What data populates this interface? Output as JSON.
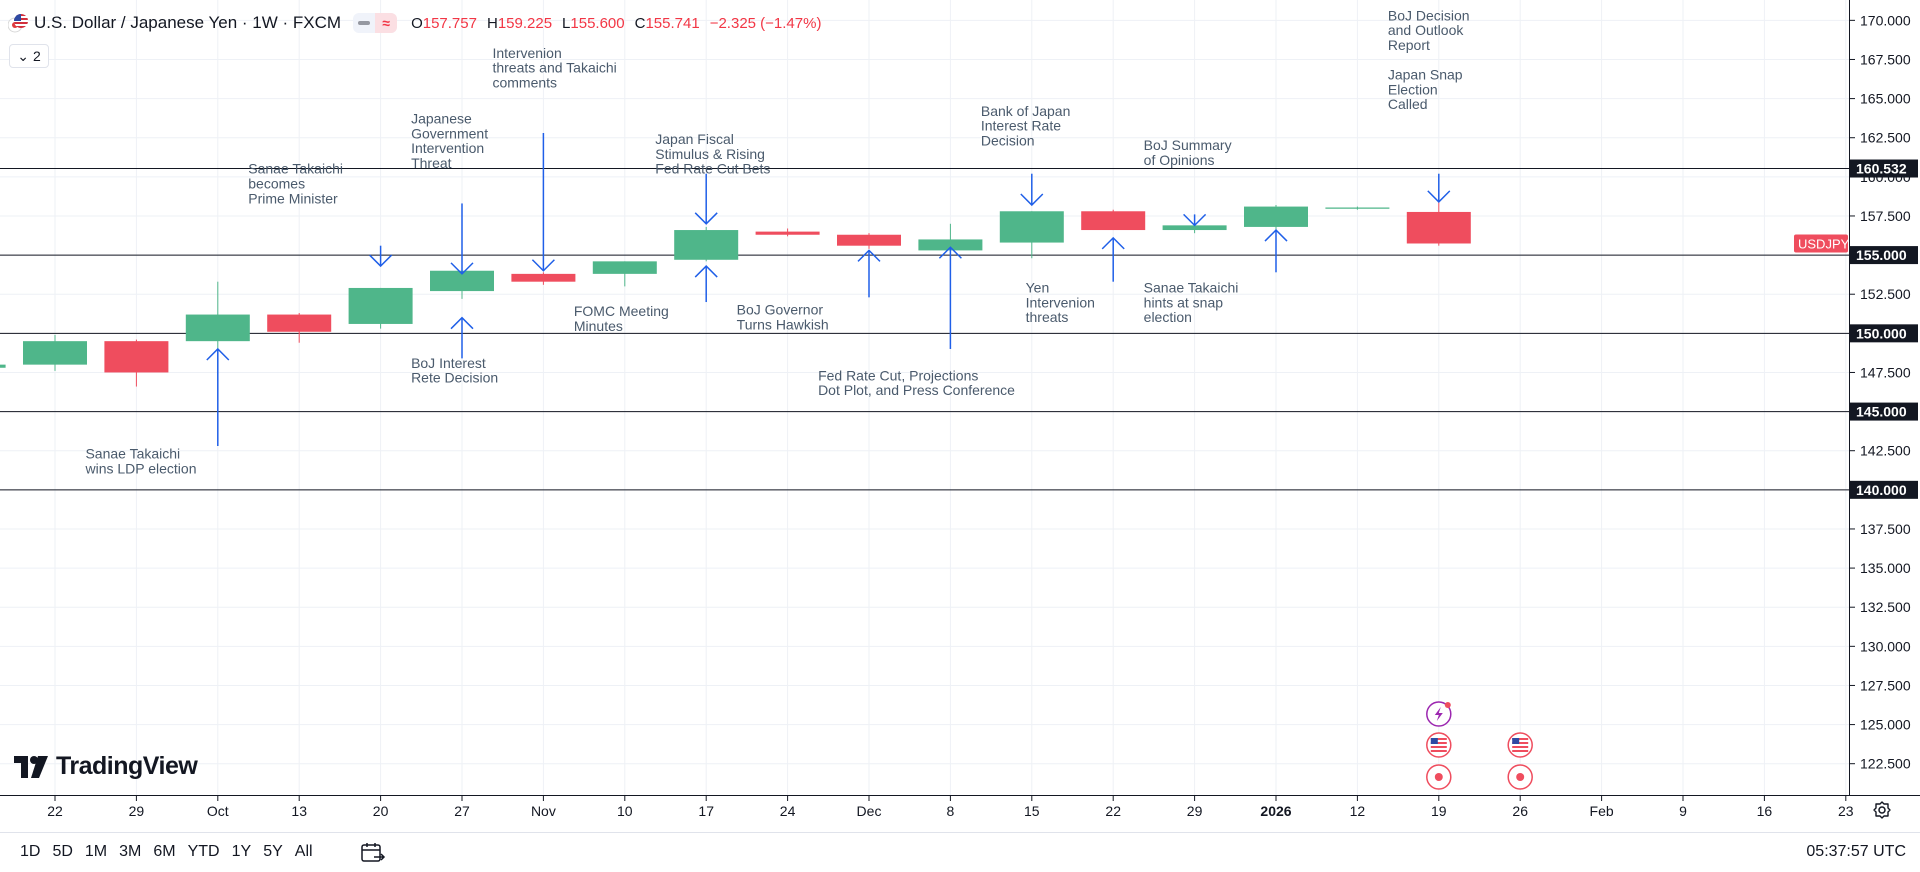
{
  "legend": {
    "title": "U.S. Dollar / Japanese Yen · 1W · FXCM",
    "open_label": "O",
    "open": "157.757",
    "high_label": "H",
    "high": "159.225",
    "low_label": "L",
    "low": "155.600",
    "close_label": "C",
    "close": "155.741",
    "change": "−2.325 (−1.47%)",
    "indicators_count": "2"
  },
  "brand": {
    "name": "TradingView"
  },
  "bottom": {
    "ranges": [
      "1D",
      "5D",
      "1M",
      "3M",
      "6M",
      "YTD",
      "1Y",
      "5Y",
      "All"
    ],
    "clock": "05:37:57 UTC"
  },
  "colors": {
    "up": "#4fb68a",
    "down": "#ef4d5e",
    "annotation": "#1f5fe8",
    "text_annot": "#4a5a6c",
    "grid": "#eef1f6"
  },
  "chart_data": {
    "type": "candlestick",
    "symbol": "USDJPY",
    "ylim": [
      120.5,
      171.3
    ],
    "y_ticks": [
      "170.000",
      "167.500",
      "165.000",
      "162.500",
      "160.000",
      "157.500",
      "155.000",
      "152.500",
      "150.000",
      "147.500",
      "145.000",
      "142.500",
      "140.000",
      "137.500",
      "135.000",
      "132.500",
      "130.000",
      "127.500",
      "125.000",
      "122.500"
    ],
    "x_ticks": [
      {
        "i": 0,
        "label": "22"
      },
      {
        "i": 1,
        "label": "29"
      },
      {
        "i": 2,
        "label": "Oct"
      },
      {
        "i": 3,
        "label": "13"
      },
      {
        "i": 4,
        "label": "20"
      },
      {
        "i": 5,
        "label": "27"
      },
      {
        "i": 6,
        "label": "Nov"
      },
      {
        "i": 7,
        "label": "10"
      },
      {
        "i": 8,
        "label": "17"
      },
      {
        "i": 9,
        "label": "24"
      },
      {
        "i": 10,
        "label": "Dec"
      },
      {
        "i": 11,
        "label": "8"
      },
      {
        "i": 12,
        "label": "15"
      },
      {
        "i": 13,
        "label": "22"
      },
      {
        "i": 14,
        "label": "29"
      },
      {
        "i": 15,
        "label": "2026",
        "bold": true
      },
      {
        "i": 16,
        "label": "12"
      },
      {
        "i": 17,
        "label": "19"
      },
      {
        "i": 18,
        "label": "26"
      },
      {
        "i": 19,
        "label": "Feb"
      },
      {
        "i": 20,
        "label": "9"
      },
      {
        "i": 21,
        "label": "16"
      },
      {
        "i": 22,
        "label": "23"
      }
    ],
    "candles": [
      {
        "i": -1,
        "o": 147.8,
        "h": 148.2,
        "l": 147.5,
        "c": 148.0
      },
      {
        "i": 0,
        "o": 148.0,
        "h": 149.9,
        "l": 147.6,
        "c": 149.5
      },
      {
        "i": 1,
        "o": 149.5,
        "h": 149.6,
        "l": 146.6,
        "c": 147.5
      },
      {
        "i": 2,
        "o": 149.5,
        "h": 153.3,
        "l": 147.0,
        "c": 151.2
      },
      {
        "i": 3,
        "o": 151.2,
        "h": 151.3,
        "l": 149.4,
        "c": 150.1
      },
      {
        "i": 4,
        "o": 150.6,
        "h": 152.9,
        "l": 150.3,
        "c": 152.9
      },
      {
        "i": 5,
        "o": 152.7,
        "h": 154.2,
        "l": 152.2,
        "c": 154.0
      },
      {
        "i": 6,
        "o": 153.8,
        "h": 153.9,
        "l": 153.1,
        "c": 153.3
      },
      {
        "i": 7,
        "o": 153.8,
        "h": 154.6,
        "l": 153.0,
        "c": 154.6
      },
      {
        "i": 8,
        "o": 154.7,
        "h": 156.8,
        "l": 154.6,
        "c": 156.6
      },
      {
        "i": 9,
        "o": 156.5,
        "h": 156.7,
        "l": 156.2,
        "c": 156.3
      },
      {
        "i": 10,
        "o": 156.3,
        "h": 156.4,
        "l": 155.4,
        "c": 155.6
      },
      {
        "i": 11,
        "o": 155.3,
        "h": 157.0,
        "l": 154.9,
        "c": 156.0
      },
      {
        "i": 12,
        "o": 155.8,
        "h": 157.8,
        "l": 154.8,
        "c": 157.8
      },
      {
        "i": 13,
        "o": 157.8,
        "h": 157.9,
        "l": 156.6,
        "c": 156.6
      },
      {
        "i": 14,
        "o": 156.6,
        "h": 157.0,
        "l": 156.4,
        "c": 156.9
      },
      {
        "i": 15,
        "o": 156.8,
        "h": 158.2,
        "l": 156.6,
        "c": 158.1
      },
      {
        "i": 16,
        "o": 158.0,
        "h": 158.1,
        "l": 157.9,
        "c": 158.0
      },
      {
        "i": 17,
        "o": 157.757,
        "h": 159.225,
        "l": 155.6,
        "c": 155.741
      }
    ],
    "horizontal_lines": [
      160.532,
      155.0,
      150.0,
      145.0,
      140.0
    ],
    "price_labels": [
      {
        "v": 160.532,
        "text": "160.532"
      },
      {
        "v": 155.0,
        "text": "155.000"
      },
      {
        "v": 150.0,
        "text": "150.000"
      },
      {
        "v": 145.0,
        "text": "145.000"
      },
      {
        "v": 140.0,
        "text": "140.000"
      }
    ],
    "current_price_label": {
      "v": 155.741,
      "text": "USDJPY"
    },
    "annotations": [
      {
        "text": [
          "Sanae Takaichi",
          "wins LDP election"
        ],
        "arrow_i": 2,
        "tip": 149.0,
        "tail": 142.8,
        "text_i": 1.05,
        "text_v": 142.0
      },
      {
        "text": [
          "Sanae Takaichi",
          "becomes",
          "Prime Minister"
        ],
        "arrow_i": 4,
        "tip": 154.3,
        "tail": 155.6,
        "text_i": 3.05,
        "text_v": 160.2
      },
      {
        "text": [
          "Japanese",
          "Government",
          "Intervention",
          "Threat"
        ],
        "arrow_i": 5,
        "tip": 153.8,
        "tail": 158.3,
        "text_i": 5.05,
        "text_v": 163.4
      },
      {
        "text": [
          "BoJ Interest",
          "Rete Decision"
        ],
        "arrow_i": 5,
        "tip": 151.0,
        "tail": 148.4,
        "text_i": 5.05,
        "text_v": 147.8
      },
      {
        "text": [
          "Intervenion",
          "threats and Takaichi",
          "comments"
        ],
        "arrow_i": 6,
        "tip": 154.0,
        "tail": 162.8,
        "text_i": 6.05,
        "text_v": 167.6
      },
      {
        "text": [
          "FOMC Meeting",
          "Minutes"
        ],
        "arrow_i": 8,
        "tip": 154.3,
        "tail": 152.0,
        "text_i": 7.05,
        "text_v": 151.1
      },
      {
        "text": [
          "Japan Fiscal",
          "Stimulus & Rising",
          "Fed Rate Cut Bets"
        ],
        "arrow_i": 8,
        "tip": 157.0,
        "tail": 160.2,
        "text_i": 8.05,
        "text_v": 162.1
      },
      {
        "text": [
          "BoJ Governor",
          "Turns Hawkish"
        ],
        "arrow_i": 10,
        "tip": 155.3,
        "tail": 152.3,
        "text_i": 9.05,
        "text_v": 151.2
      },
      {
        "text": [
          "Fed Rate Cut, Projections",
          "Dot Plot, and Press Conference"
        ],
        "arrow_i": 11,
        "tip": 155.5,
        "tail": 149.0,
        "text_i": 10.05,
        "text_v": 147.0
      },
      {
        "text": [
          "Bank of Japan",
          "Interest Rate",
          "Decision"
        ],
        "arrow_i": 12,
        "tip": 158.2,
        "tail": 160.2,
        "text_i": 12.05,
        "text_v": 163.9
      },
      {
        "text": [
          "Yen",
          "Intervenion",
          "threats"
        ],
        "arrow_i": 13,
        "tip": 156.1,
        "tail": 153.3,
        "text_i": 12.6,
        "text_v": 152.6
      },
      {
        "text": [
          "BoJ Summary",
          "of Opinions"
        ],
        "arrow_i": 14,
        "tip": 156.9,
        "tail": 157.6,
        "text_i": 14.05,
        "text_v": 161.7
      },
      {
        "text": [
          "Sanae Takaichi",
          "hints at snap",
          "election"
        ],
        "arrow_i": 15,
        "tip": 156.6,
        "tail": 153.9,
        "text_i": 14.05,
        "text_v": 152.6
      },
      {
        "text": [
          "BoJ Decision",
          "and Outlook",
          "Report",
          "",
          "Japan Snap",
          "Election",
          "Called"
        ],
        "arrow_i": 17,
        "tip": 158.4,
        "tail": 160.2,
        "text_i": 17.05,
        "text_v": 170.0
      }
    ],
    "grid": true,
    "legend_placement": "top-left"
  }
}
